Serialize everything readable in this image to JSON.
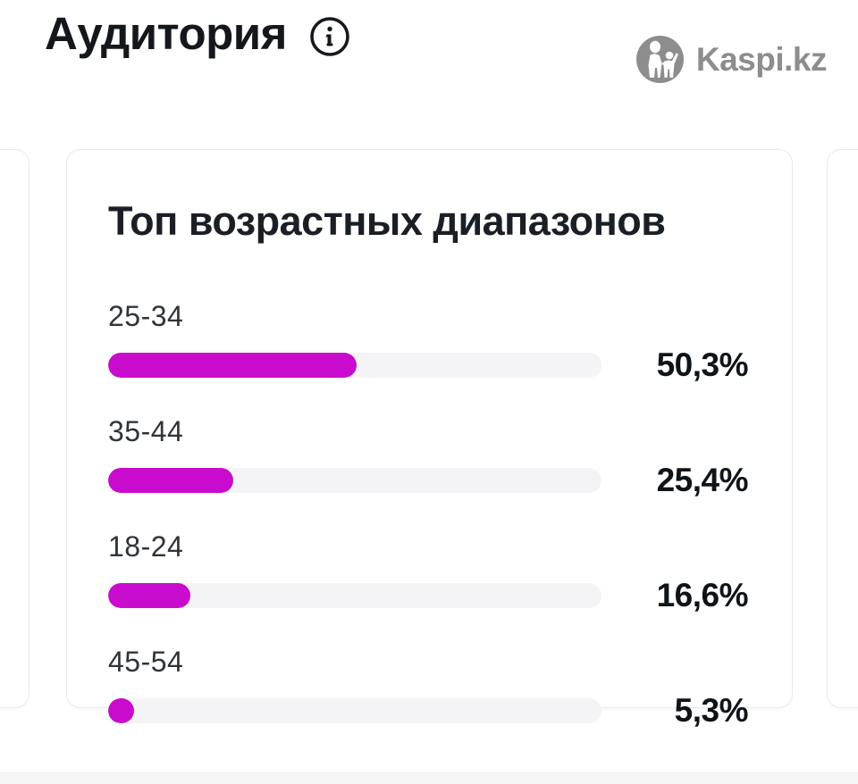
{
  "header": {
    "title": "Аудитория",
    "brand_text": "Kaspi.kz"
  },
  "card": {
    "title": "Топ возрастных диапазонов",
    "rows": [
      {
        "label": "25-34",
        "value": 50.3,
        "value_label": "50,3%"
      },
      {
        "label": "35-44",
        "value": 25.4,
        "value_label": "25,4%"
      },
      {
        "label": "18-24",
        "value": 16.6,
        "value_label": "16,6%"
      },
      {
        "label": "45-54",
        "value": 5.3,
        "value_label": "5,3%"
      }
    ]
  },
  "chart_data": {
    "type": "bar",
    "orientation": "horizontal",
    "title": "Топ возрастных диапазонов",
    "categories": [
      "25-34",
      "35-44",
      "18-24",
      "45-54"
    ],
    "values": [
      50.3,
      25.4,
      16.6,
      5.3
    ],
    "value_labels": [
      "50,3%",
      "25,4%",
      "16,6%",
      "5,3%"
    ],
    "xlim": [
      0,
      100
    ],
    "grid": false,
    "legend": false
  },
  "icons": {
    "info": "info-icon",
    "brand": "kaspi-logo-icon"
  },
  "colors": {
    "accent": "#c90bcd",
    "track": "#f4f4f6",
    "text_dark": "#14181d",
    "text_label": "#2f3439",
    "logo_gray": "#8d8d8d",
    "card_border": "#e9e9e9",
    "bottom_band": "#f5f5f6"
  }
}
